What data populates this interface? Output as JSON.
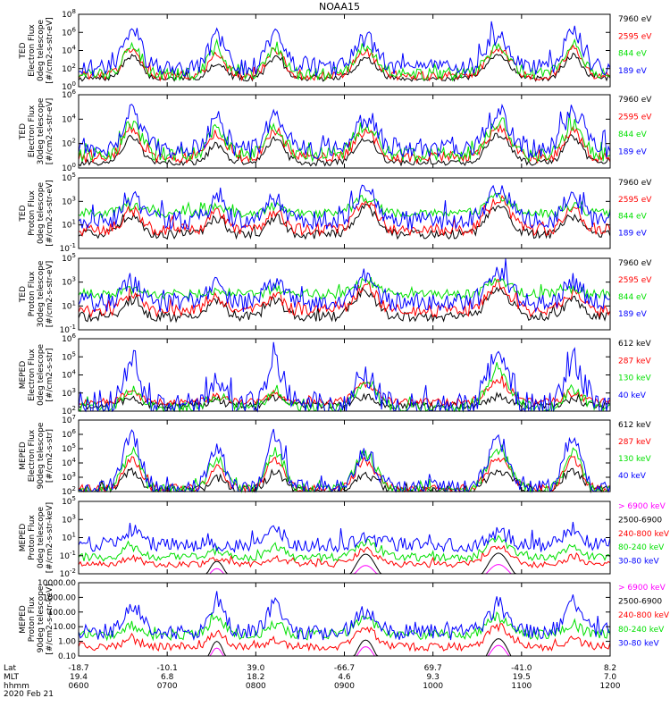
{
  "figure": {
    "title": "NOAA15",
    "footer": {
      "row_labels": [
        "Lat",
        "MLT",
        "hhmm",
        "2020 Feb 21"
      ],
      "lat": [
        "-18.7",
        "-10.1",
        "39.0",
        "-66.7",
        "69.7",
        "-41.0",
        "8.2"
      ],
      "mlt": [
        "19.4",
        "6.8",
        "18.2",
        "4.6",
        "9.3",
        "19.5",
        "7.0"
      ],
      "hhmm": [
        "0600",
        "0700",
        "0800",
        "0900",
        "1000",
        "1100",
        "1200"
      ]
    }
  },
  "colors": {
    "blue": "#0000ff",
    "red": "#ff0000",
    "green": "#00e000",
    "black": "#000000",
    "magenta": "#ff00ff"
  },
  "chart_data": [
    {
      "type": "line",
      "log_scale": true,
      "ylabel": [
        "TED",
        "Electron Flux",
        "0deg telescope",
        "[#/cm2-s-str-eV]"
      ],
      "y_ticks": [
        [
          "10",
          "0"
        ],
        [
          "10",
          "2"
        ],
        [
          "10",
          "4"
        ],
        [
          "10",
          "6"
        ],
        [
          "10",
          "8"
        ]
      ],
      "ylim_exp": [
        0,
        8
      ],
      "series": [
        {
          "name": "7960 eV",
          "color": "black",
          "bg": 0.9,
          "peaks": [
            3.4,
            2.6,
            3.2,
            3.1,
            3.5,
            3.4
          ],
          "spike": 0.3
        },
        {
          "name": "2595 eV",
          "color": "red",
          "bg": 1.2,
          "peaks": [
            4.2,
            3.6,
            4.0,
            3.9,
            4.2,
            4.1
          ],
          "spike": 0.5
        },
        {
          "name": "844 eV",
          "color": "green",
          "bg": 1.4,
          "peaks": [
            4.8,
            4.3,
            4.4,
            4.4,
            4.6,
            4.8
          ],
          "spike": 0.7
        },
        {
          "name": "189 eV",
          "color": "blue",
          "bg": 2.1,
          "peaks": [
            6.2,
            5.5,
            5.8,
            5.4,
            5.7,
            6.3
          ],
          "spike": 1.0
        }
      ]
    },
    {
      "type": "line",
      "log_scale": true,
      "ylabel": [
        "TED",
        "Electron Flux",
        "30deg telescope",
        "[#/cm2-s-str-eV]"
      ],
      "y_ticks": [
        [
          "10",
          "0"
        ],
        [
          "10",
          "2"
        ],
        [
          "10",
          "4"
        ],
        [
          "10",
          "6"
        ]
      ],
      "ylim_exp": [
        0,
        7
      ],
      "series": [
        {
          "name": "7960 eV",
          "color": "black",
          "bg": 0.5,
          "peaks": [
            3.0,
            2.2,
            2.8,
            2.8,
            3.2,
            3.0
          ],
          "spike": 0.3
        },
        {
          "name": "2595 eV",
          "color": "red",
          "bg": 1.0,
          "peaks": [
            3.7,
            3.3,
            3.5,
            3.4,
            3.7,
            3.6
          ],
          "spike": 0.5
        },
        {
          "name": "844 eV",
          "color": "green",
          "bg": 1.3,
          "peaks": [
            4.3,
            3.9,
            4.0,
            4.0,
            4.2,
            4.3
          ],
          "spike": 0.7
        },
        {
          "name": "189 eV",
          "color": "blue",
          "bg": 1.9,
          "peaks": [
            5.6,
            4.9,
            5.2,
            4.9,
            5.2,
            5.5
          ],
          "spike": 1.0
        }
      ]
    },
    {
      "type": "line",
      "log_scale": true,
      "ylabel": [
        "TED",
        "Proton Flux",
        "0deg telescope",
        "[#/cm2-s-str-eV]"
      ],
      "y_ticks": [
        [
          "10",
          "-1"
        ],
        [
          "10",
          "1"
        ],
        [
          "10",
          "3"
        ],
        [
          "10",
          "5"
        ]
      ],
      "ylim_exp": [
        -1,
        5
      ],
      "series": [
        {
          "name": "7960 eV",
          "color": "black",
          "bg": 0.2,
          "peaks": [
            1.8,
            1.6,
            1.7,
            2.6,
            2.7,
            1.8
          ],
          "spike": 0.4
        },
        {
          "name": "2595 eV",
          "color": "red",
          "bg": 0.6,
          "peaks": [
            2.2,
            2.0,
            2.1,
            3.0,
            3.1,
            2.3
          ],
          "spike": 0.5
        },
        {
          "name": "844 eV",
          "color": "green",
          "bg": 2.0,
          "peaks": [
            2.6,
            2.5,
            2.6,
            3.3,
            3.4,
            2.6
          ],
          "spike": 0.4
        },
        {
          "name": "189 eV",
          "color": "blue",
          "bg": 1.4,
          "peaks": [
            3.4,
            3.0,
            3.2,
            3.8,
            3.9,
            3.4
          ],
          "spike": 0.8
        }
      ]
    },
    {
      "type": "line",
      "log_scale": true,
      "ylabel": [
        "TED",
        "Proton Flux",
        "30deg telescope",
        "[#/cm2-s-str-eV]"
      ],
      "y_ticks": [
        [
          "10",
          "-1"
        ],
        [
          "10",
          "1"
        ],
        [
          "10",
          "3"
        ],
        [
          "10",
          "5"
        ]
      ],
      "ylim_exp": [
        -1,
        5
      ],
      "series": [
        {
          "name": "7960 eV",
          "color": "black",
          "bg": 0.1,
          "peaks": [
            1.5,
            1.4,
            1.5,
            2.3,
            2.4,
            1.5
          ],
          "spike": 0.4
        },
        {
          "name": "2595 eV",
          "color": "red",
          "bg": 0.6,
          "peaks": [
            1.9,
            1.8,
            1.9,
            2.7,
            2.8,
            2.0
          ],
          "spike": 0.5
        },
        {
          "name": "844 eV",
          "color": "green",
          "bg": 2.0,
          "peaks": [
            2.4,
            2.3,
            2.4,
            3.0,
            3.1,
            2.4
          ],
          "spike": 0.4
        },
        {
          "name": "189 eV",
          "color": "blue",
          "bg": 1.3,
          "peaks": [
            3.0,
            2.8,
            3.0,
            3.5,
            3.6,
            3.1
          ],
          "spike": 0.8
        }
      ]
    },
    {
      "type": "line",
      "log_scale": true,
      "ylabel": [
        "MEPED",
        "Electron Flux",
        "0deg telescope",
        "[#/cm2-s-str]"
      ],
      "y_ticks": [
        [
          "10",
          "2"
        ],
        [
          "10",
          "3"
        ],
        [
          "10",
          "4"
        ],
        [
          "10",
          "5"
        ],
        [
          "10",
          "6"
        ]
      ],
      "ylim_exp": [
        2,
        6
      ],
      "series": [
        {
          "name": "612 keV",
          "color": "black",
          "bg": 2.3,
          "peaks": [
            2.7,
            2.5,
            2.7,
            2.8,
            2.8,
            2.6
          ],
          "spike": 0.2
        },
        {
          "name": "287 keV",
          "color": "red",
          "bg": 2.5,
          "peaks": [
            3.0,
            2.8,
            3.0,
            3.5,
            3.6,
            3.0
          ],
          "spike": 0.2
        },
        {
          "name": "130 keV",
          "color": "green",
          "bg": 2.2,
          "peaks": [
            3.2,
            2.9,
            3.2,
            3.6,
            4.2,
            3.2
          ],
          "spike": 0.3
        },
        {
          "name": "40 keV",
          "color": "blue",
          "bg": 2.3,
          "peaks": [
            4.8,
            3.6,
            4.8,
            3.8,
            5.0,
            4.9
          ],
          "spike": 0.8
        }
      ]
    },
    {
      "type": "line",
      "log_scale": true,
      "ylabel": [
        "MEPED",
        "Electron Flux",
        "90deg telescope",
        "[#/cm2-s-str]"
      ],
      "y_ticks": [
        [
          "10",
          "2"
        ],
        [
          "10",
          "3"
        ],
        [
          "10",
          "4"
        ],
        [
          "10",
          "5"
        ],
        [
          "10",
          "6"
        ],
        [
          "10",
          "7"
        ]
      ],
      "ylim_exp": [
        2,
        7
      ],
      "series": [
        {
          "name": "612 keV",
          "color": "black",
          "bg": 2.1,
          "peaks": [
            3.4,
            3.0,
            3.4,
            3.1,
            3.5,
            3.4
          ],
          "spike": 0.3
        },
        {
          "name": "287 keV",
          "color": "red",
          "bg": 2.2,
          "peaks": [
            4.2,
            3.6,
            4.2,
            4.1,
            4.3,
            4.2
          ],
          "spike": 0.3
        },
        {
          "name": "130 keV",
          "color": "green",
          "bg": 2.1,
          "peaks": [
            4.8,
            4.3,
            4.8,
            4.6,
            4.9,
            4.8
          ],
          "spike": 0.4
        },
        {
          "name": "40 keV",
          "color": "blue",
          "bg": 2.2,
          "peaks": [
            5.8,
            5.0,
            5.8,
            4.7,
            5.5,
            6.0
          ],
          "spike": 0.6
        }
      ]
    },
    {
      "type": "line",
      "log_scale": true,
      "ylabel": [
        "MEPED",
        "Proton Flux",
        "0deg telescope",
        "[#/cm2-s-str-keV]"
      ],
      "y_ticks": [
        [
          "10",
          "-2"
        ],
        [
          "10",
          "-1"
        ],
        [
          "10",
          "1"
        ],
        [
          "10",
          "3"
        ],
        [
          "10",
          "5"
        ]
      ],
      "ylim_exp": [
        -2,
        5
      ],
      "series": [
        {
          "name": "> 6900 keV",
          "color": "magenta",
          "bg": -3.0,
          "peaks": [
            -3.0,
            -1.5,
            -3.0,
            -1.2,
            -1.1,
            -3.0
          ],
          "spike": 0.0
        },
        {
          "name": "2500-6900",
          "color": "black",
          "bg": -3.0,
          "peaks": [
            -3.0,
            -0.8,
            -3.0,
            -0.1,
            0.0,
            -3.0
          ],
          "spike": 0.0
        },
        {
          "name": "240-800 keV",
          "color": "red",
          "bg": -1.1,
          "peaks": [
            -0.5,
            -0.5,
            -0.5,
            0.4,
            0.6,
            -0.5
          ],
          "spike": 0.3
        },
        {
          "name": "80-240 keV",
          "color": "green",
          "bg": -0.4,
          "peaks": [
            0.6,
            0.2,
            0.6,
            1.1,
            1.3,
            0.6
          ],
          "spike": 0.4
        },
        {
          "name": "30-80 keV",
          "color": "blue",
          "bg": 0.8,
          "peaks": [
            2.3,
            0.9,
            2.3,
            1.6,
            1.9,
            2.4
          ],
          "spike": 0.7
        }
      ]
    },
    {
      "type": "line",
      "log_scale": true,
      "ylabel": [
        "MEPED",
        "Proton Flux",
        "90deg telescope",
        "[#/cm2-s-str-keV]"
      ],
      "y_ticks": [
        [
          "0.10",
          ""
        ],
        [
          "1.00",
          ""
        ],
        [
          "10.00",
          ""
        ],
        [
          "100.00",
          ""
        ],
        [
          "1000.00",
          ""
        ],
        [
          "10000.00",
          ""
        ]
      ],
      "ylim_exp": [
        -1.5,
        4
      ],
      "series": [
        {
          "name": "> 6900 keV",
          "color": "magenta",
          "bg": -3.0,
          "peaks": [
            -3.0,
            -0.9,
            -3.0,
            -0.8,
            -0.7,
            -3.0
          ],
          "spike": 0.0
        },
        {
          "name": "2500-6900",
          "color": "black",
          "bg": -3.0,
          "peaks": [
            -3.0,
            -0.4,
            -3.0,
            -0.3,
            -0.2,
            -3.0
          ],
          "spike": 0.0
        },
        {
          "name": "240-800 keV",
          "color": "red",
          "bg": -0.8,
          "peaks": [
            -0.3,
            0.3,
            -0.3,
            0.6,
            0.7,
            -0.3
          ],
          "spike": 0.3
        },
        {
          "name": "80-240 keV",
          "color": "green",
          "bg": 0.1,
          "peaks": [
            0.8,
            1.1,
            0.8,
            1.3,
            1.4,
            0.8
          ],
          "spike": 0.4
        },
        {
          "name": "30-80 keV",
          "color": "blue",
          "bg": 0.3,
          "peaks": [
            2.3,
            2.4,
            2.3,
            1.8,
            2.0,
            2.4
          ],
          "spike": 0.6
        }
      ]
    }
  ]
}
